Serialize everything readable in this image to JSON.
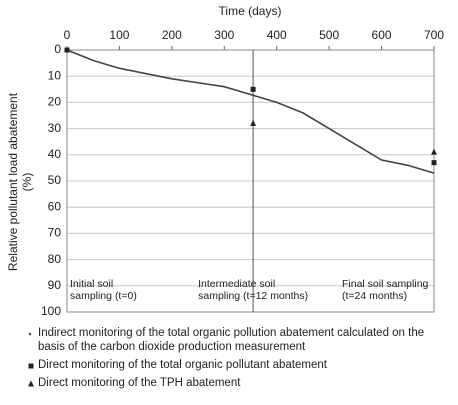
{
  "chart_data": {
    "type": "line",
    "x_label": "Time (days)",
    "y_label": "Relative pollutant  load abatement",
    "y_unit": "(%)",
    "xlim": [
      0,
      700
    ],
    "xticks": [
      0,
      100,
      200,
      300,
      400,
      500,
      600,
      700
    ],
    "ylim": [
      0,
      100
    ],
    "yticks": [
      0,
      10,
      20,
      30,
      40,
      50,
      60,
      70,
      80,
      90,
      100
    ],
    "y_inverted": true,
    "grid": true,
    "reference_x": 355,
    "annotations": [
      [
        "Initial soil",
        "sampling (t=0)"
      ],
      [
        "Intermediate soil",
        "sampling (t=12 months)"
      ],
      [
        "Final soil sampling",
        "(t=24 months)"
      ]
    ],
    "series": [
      {
        "name": "Indirect monitoring of the total organic pollution abatement calculated on the basis of the carbon dioxide production measurement",
        "marker": "line",
        "color": "#444444",
        "x": [
          0,
          50,
          100,
          150,
          200,
          250,
          300,
          350,
          400,
          450,
          500,
          550,
          600,
          650,
          700
        ],
        "values": [
          0,
          4,
          7,
          9,
          11,
          12.5,
          14,
          17,
          20,
          24,
          30,
          36,
          42,
          44,
          47
        ]
      },
      {
        "name": "Direct monitoring of the total organic pollutant abatement",
        "marker": "square",
        "color": "#222222",
        "x": [
          0,
          355,
          700
        ],
        "values": [
          0,
          15,
          43
        ]
      },
      {
        "name": "Direct monitoring of the TPH abatement",
        "marker": "triangle",
        "color": "#222222",
        "x": [
          355,
          700
        ],
        "values": [
          28,
          39
        ]
      }
    ]
  }
}
